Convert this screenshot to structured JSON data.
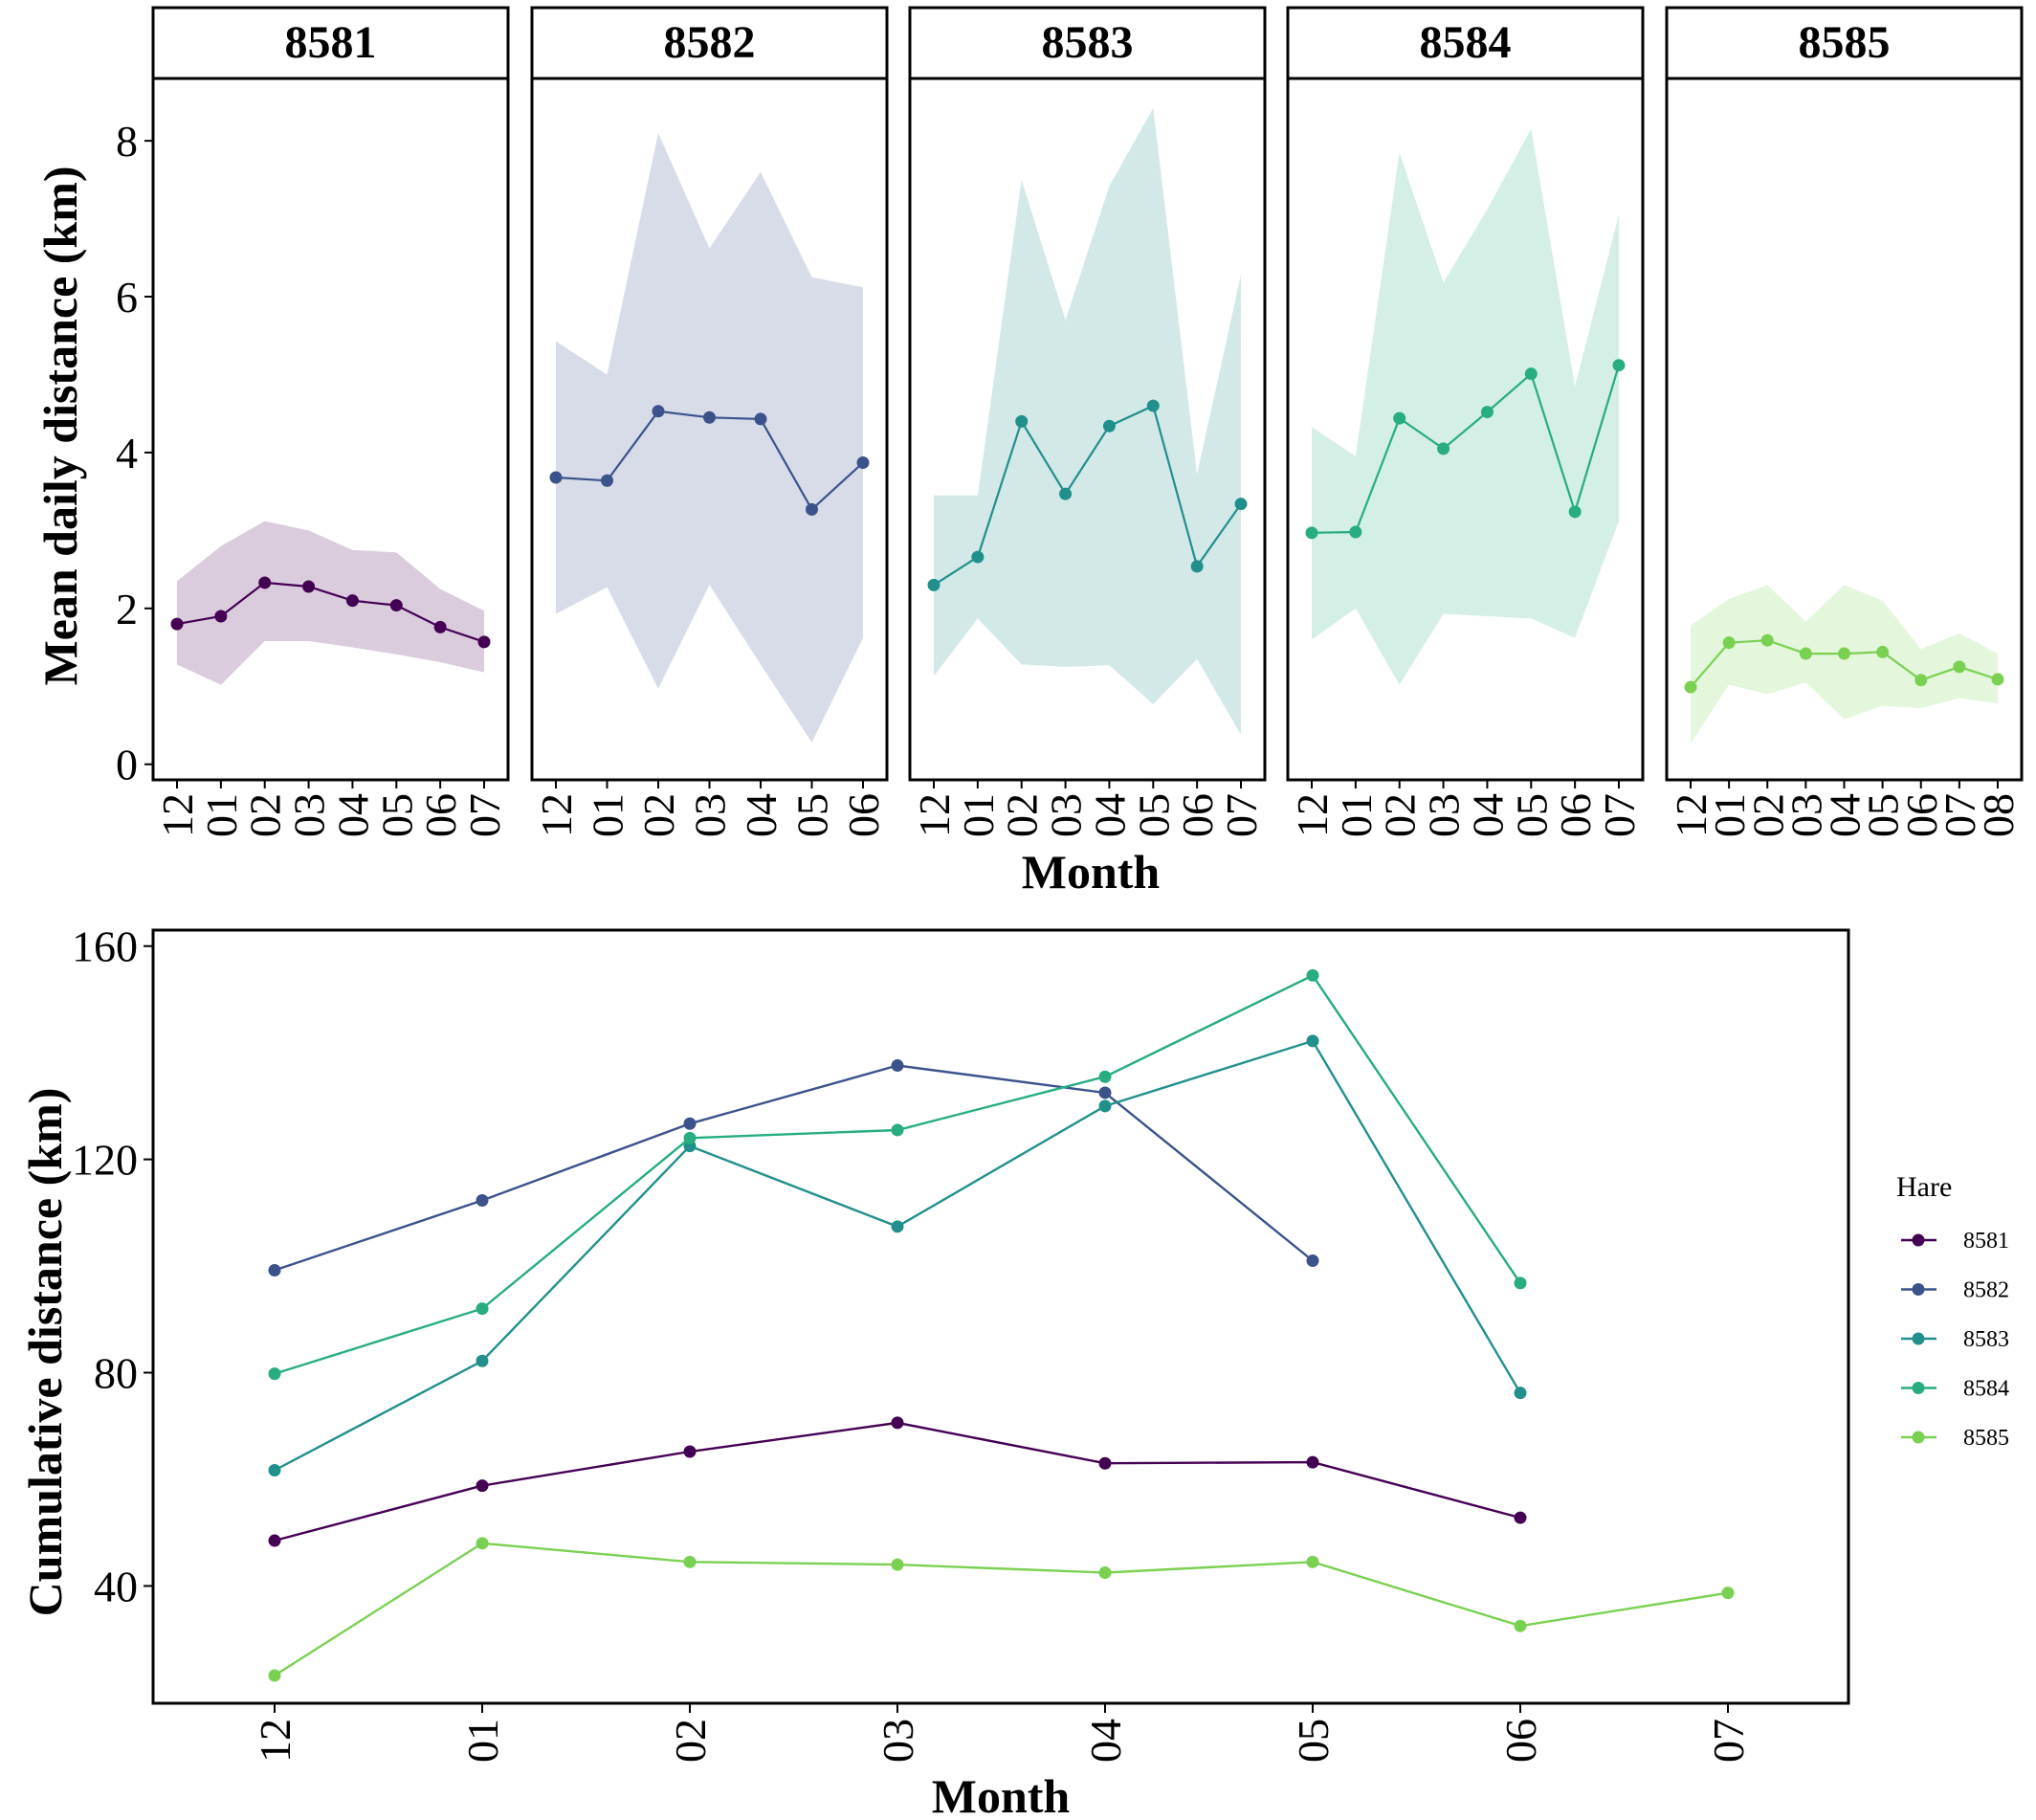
{
  "chart_data": [
    {
      "type": "line",
      "facet_panels": true,
      "ylabel": "Mean daily distance (km)",
      "xlabel": "Month",
      "ylim": [
        -0.2,
        8.8
      ],
      "yticks": [
        0,
        2,
        4,
        6,
        8
      ],
      "ribbon": true,
      "grid": false,
      "panels": [
        {
          "name": "8581",
          "color": "#440154",
          "categories": [
            "12",
            "01",
            "02",
            "03",
            "04",
            "05",
            "06",
            "07"
          ],
          "values": [
            1.8,
            1.9,
            2.33,
            2.28,
            2.1,
            2.04,
            1.76,
            1.57
          ],
          "lower": [
            1.28,
            1.02,
            1.58,
            1.58,
            1.5,
            1.41,
            1.31,
            1.18
          ],
          "upper": [
            2.35,
            2.8,
            3.12,
            3.0,
            2.75,
            2.72,
            2.25,
            1.97
          ]
        },
        {
          "name": "8582",
          "color": "#3b528b",
          "categories": [
            "12",
            "01",
            "02",
            "03",
            "04",
            "05",
            "06"
          ],
          "values": [
            3.68,
            3.64,
            4.53,
            4.45,
            4.43,
            3.27,
            3.87
          ],
          "lower": [
            1.93,
            2.27,
            0.97,
            2.3,
            1.28,
            0.28,
            1.62
          ],
          "upper": [
            5.43,
            5.0,
            8.1,
            6.62,
            7.6,
            6.25,
            6.12
          ]
        },
        {
          "name": "8583",
          "color": "#21908c",
          "categories": [
            "12",
            "01",
            "02",
            "03",
            "04",
            "05",
            "06",
            "07"
          ],
          "values": [
            2.3,
            2.66,
            4.4,
            3.47,
            4.34,
            4.6,
            2.54,
            3.34
          ],
          "lower": [
            1.13,
            1.87,
            1.28,
            1.25,
            1.27,
            0.77,
            1.35,
            0.38
          ],
          "upper": [
            3.45,
            3.45,
            7.5,
            5.7,
            7.42,
            8.42,
            3.72,
            6.28
          ]
        },
        {
          "name": "8584",
          "color": "#27ad81",
          "categories": [
            "12",
            "01",
            "02",
            "03",
            "04",
            "05",
            "06",
            "07"
          ],
          "values": [
            2.97,
            2.98,
            4.44,
            4.05,
            4.52,
            5.01,
            3.24,
            5.12
          ],
          "lower": [
            1.6,
            2.0,
            1.02,
            1.93,
            1.9,
            1.87,
            1.62,
            3.12
          ],
          "upper": [
            4.33,
            3.95,
            7.85,
            6.18,
            7.12,
            8.15,
            4.85,
            7.05
          ]
        },
        {
          "name": "8585",
          "color": "#7ad151",
          "categories": [
            "12",
            "01",
            "02",
            "03",
            "04",
            "05",
            "06",
            "07",
            "08"
          ],
          "values": [
            0.99,
            1.56,
            1.59,
            1.42,
            1.42,
            1.44,
            1.08,
            1.25,
            1.09
          ],
          "lower": [
            0.27,
            1.02,
            0.9,
            1.05,
            0.58,
            0.75,
            0.72,
            0.85,
            0.78
          ],
          "upper": [
            1.78,
            2.12,
            2.3,
            1.83,
            2.3,
            2.1,
            1.48,
            1.68,
            1.42
          ]
        }
      ]
    },
    {
      "type": "line",
      "ylabel": "Cumulative distance (km)",
      "xlabel": "Month",
      "categories": [
        "12",
        "01",
        "02",
        "03",
        "04",
        "05",
        "06",
        "07"
      ],
      "ylim": [
        18,
        163
      ],
      "yticks": [
        40,
        80,
        120,
        160
      ],
      "grid": false,
      "legend": {
        "title": "Hare",
        "position": "right"
      },
      "series": [
        {
          "name": "8581",
          "color": "#440154",
          "values": [
            48.5,
            58.8,
            65.2,
            70.6,
            63.0,
            63.2,
            52.8,
            null
          ]
        },
        {
          "name": "8582",
          "color": "#3b528b",
          "values": [
            99.2,
            112.3,
            126.7,
            137.6,
            132.5,
            101.0,
            null,
            null
          ]
        },
        {
          "name": "8583",
          "color": "#21908c",
          "values": [
            61.7,
            82.2,
            122.5,
            107.4,
            130.0,
            142.2,
            76.2,
            null
          ]
        },
        {
          "name": "8584",
          "color": "#27ad81",
          "values": [
            79.8,
            92.0,
            124.0,
            125.5,
            135.5,
            154.5,
            96.8,
            null
          ]
        },
        {
          "name": "8585",
          "color": "#7ad151",
          "values": [
            23.2,
            48.0,
            44.5,
            44.0,
            42.5,
            44.5,
            32.5,
            38.7
          ]
        }
      ]
    }
  ]
}
